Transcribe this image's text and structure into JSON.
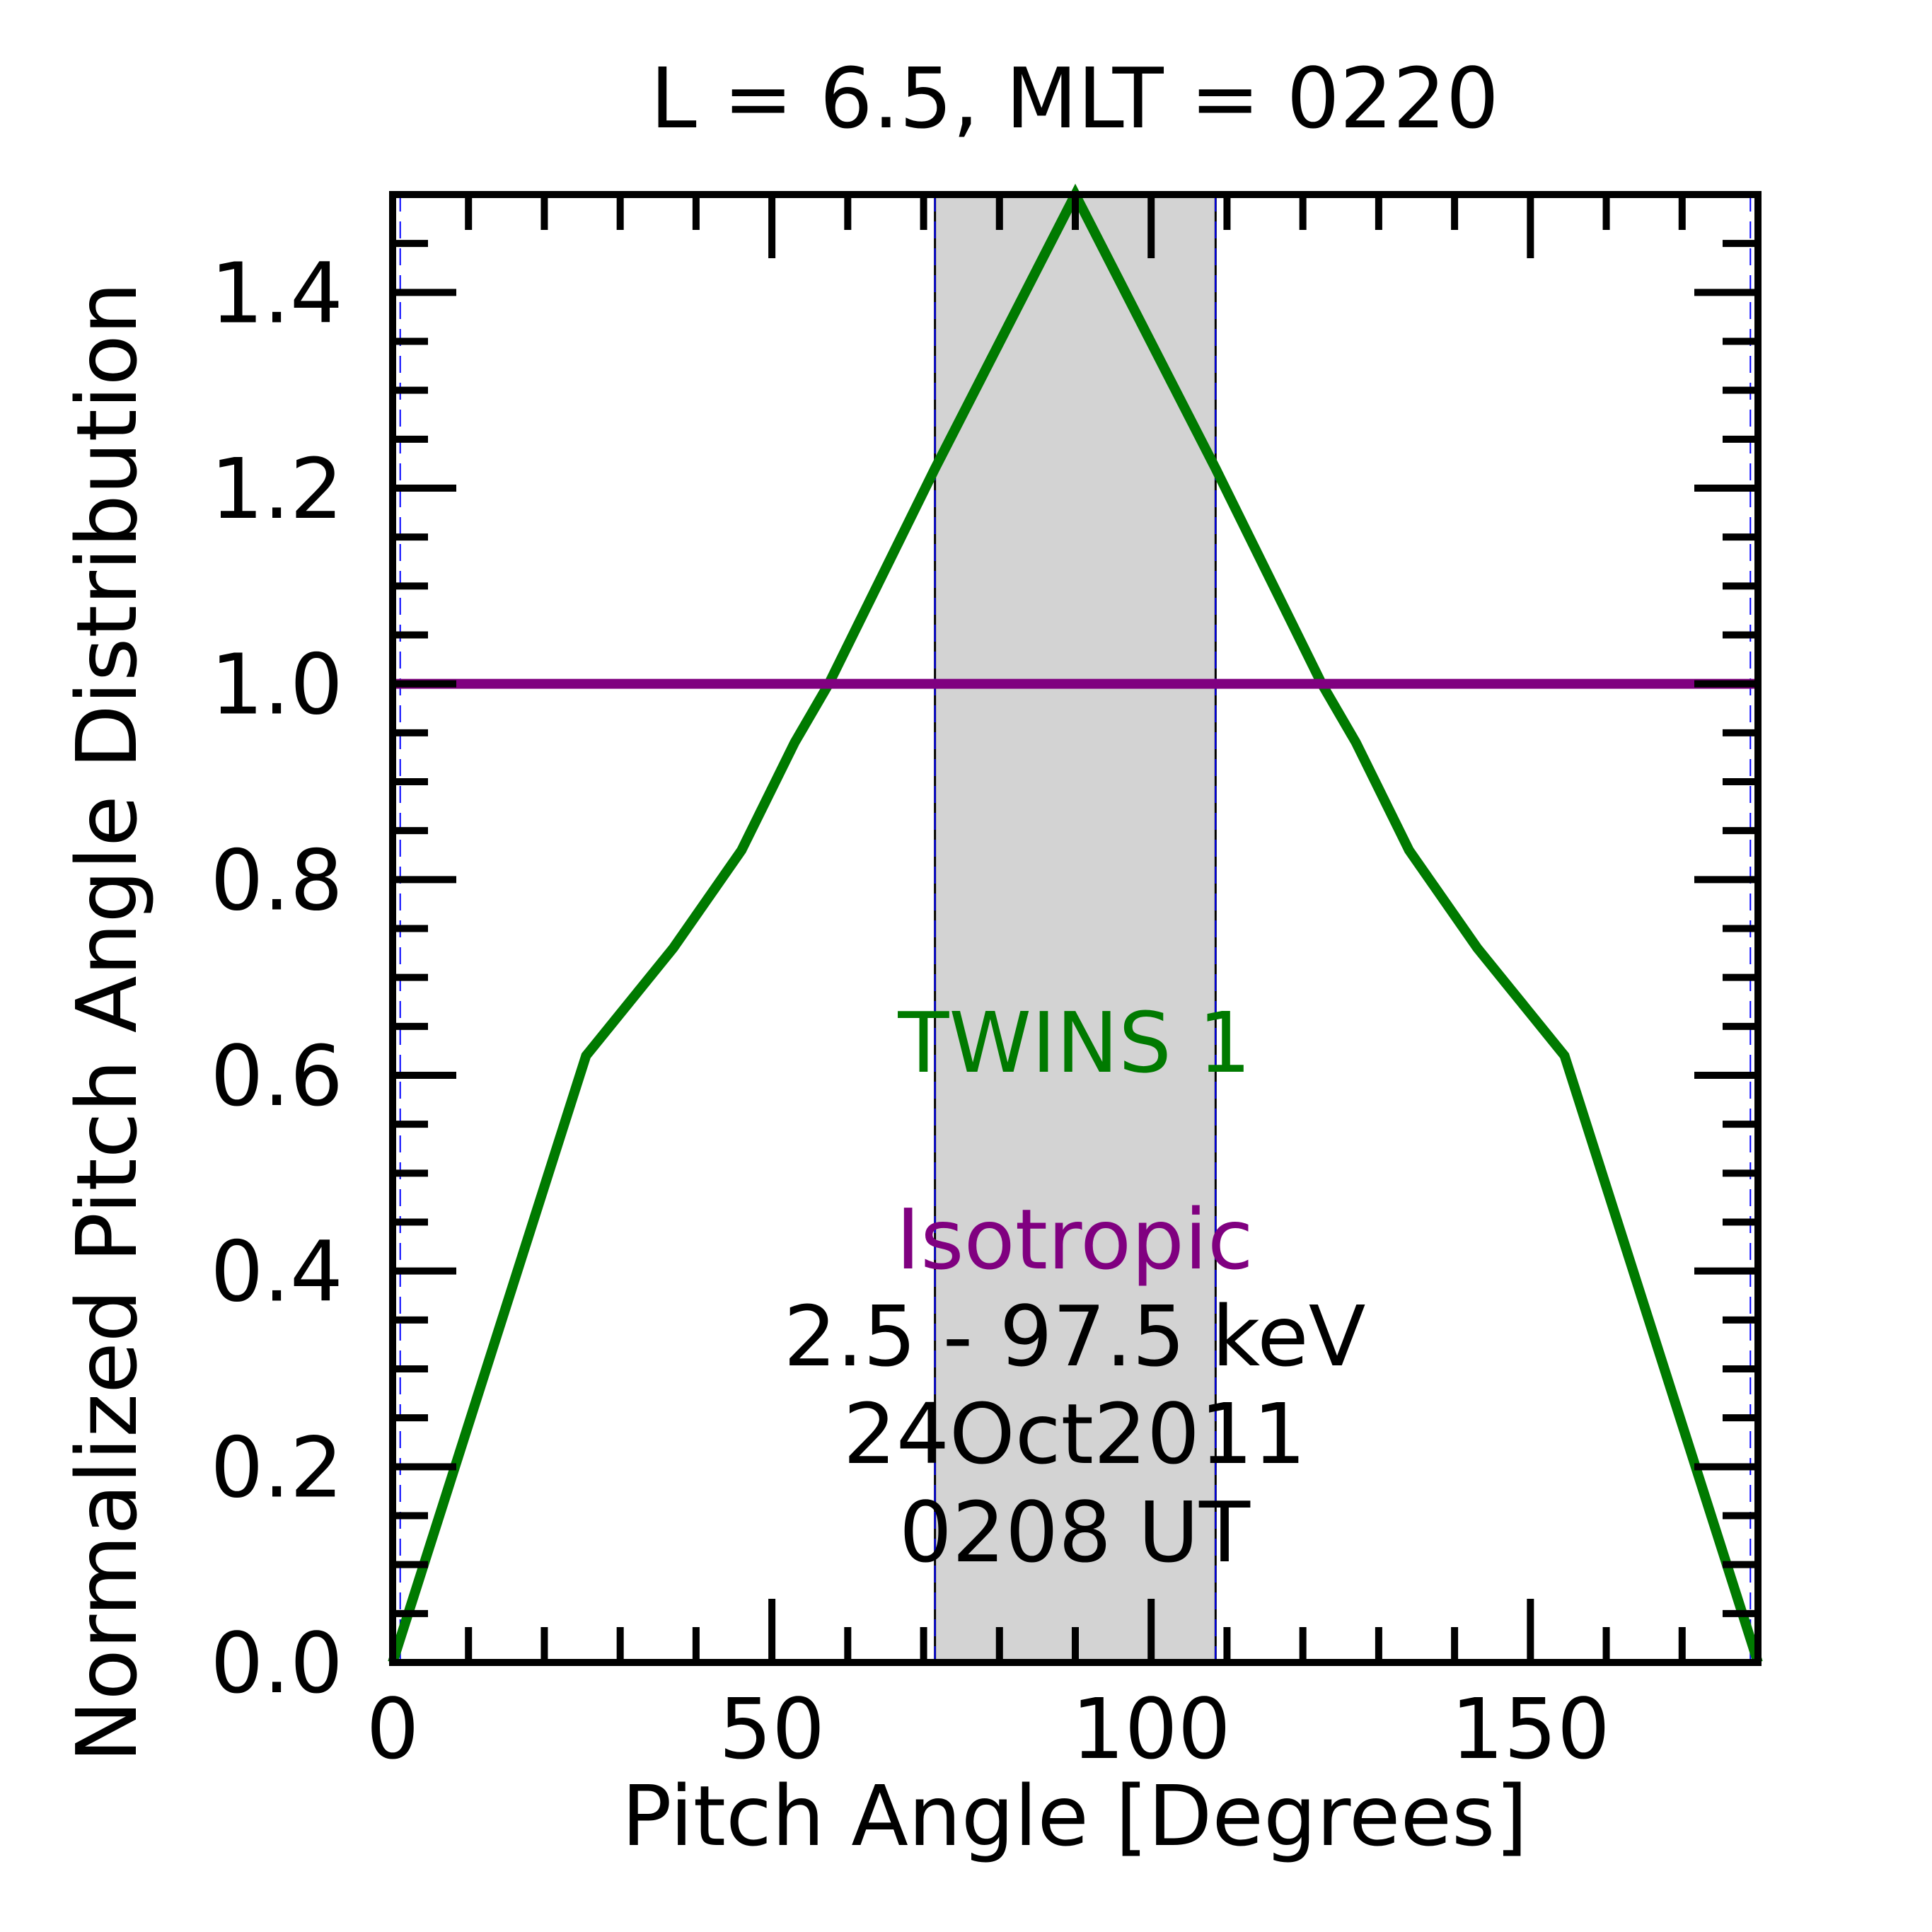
{
  "chart_data": {
    "type": "line",
    "title": "L =  6.5, MLT = 0220",
    "xlabel": "Pitch Angle [Degrees]",
    "ylabel": "Normalized Pitch Angle Distribution",
    "xlim": [
      0,
      180
    ],
    "ylim": [
      0,
      1.5
    ],
    "x_ticks": [
      0,
      50,
      100,
      150
    ],
    "y_ticks": [
      0.0,
      0.2,
      0.4,
      0.6,
      0.8,
      1.0,
      1.2,
      1.4
    ],
    "shaded_region": {
      "x": [
        71.5,
        108.5
      ],
      "color": "#d3d3d3"
    },
    "vertical_lines": [
      71.5,
      108.5
    ],
    "grid": false,
    "series": [
      {
        "name": "TWINS 1",
        "color": "#007a00",
        "x": [
          0,
          25.5,
          37,
          46,
          53,
          57.5,
          71.5,
          90,
          108.5,
          122.5,
          127,
          134,
          143,
          154.5,
          180
        ],
        "y": [
          0.0,
          0.62,
          0.73,
          0.83,
          0.94,
          1.0,
          1.22,
          1.5,
          1.22,
          1.0,
          0.94,
          0.83,
          0.73,
          0.62,
          0.0
        ]
      },
      {
        "name": "Isotropic",
        "color": "#800080",
        "x": [
          0,
          180
        ],
        "y": [
          1.0,
          1.0
        ]
      }
    ],
    "annotations": [
      "2.5 - 97.5 keV",
      "24Oct2011",
      "0208 UT"
    ]
  }
}
